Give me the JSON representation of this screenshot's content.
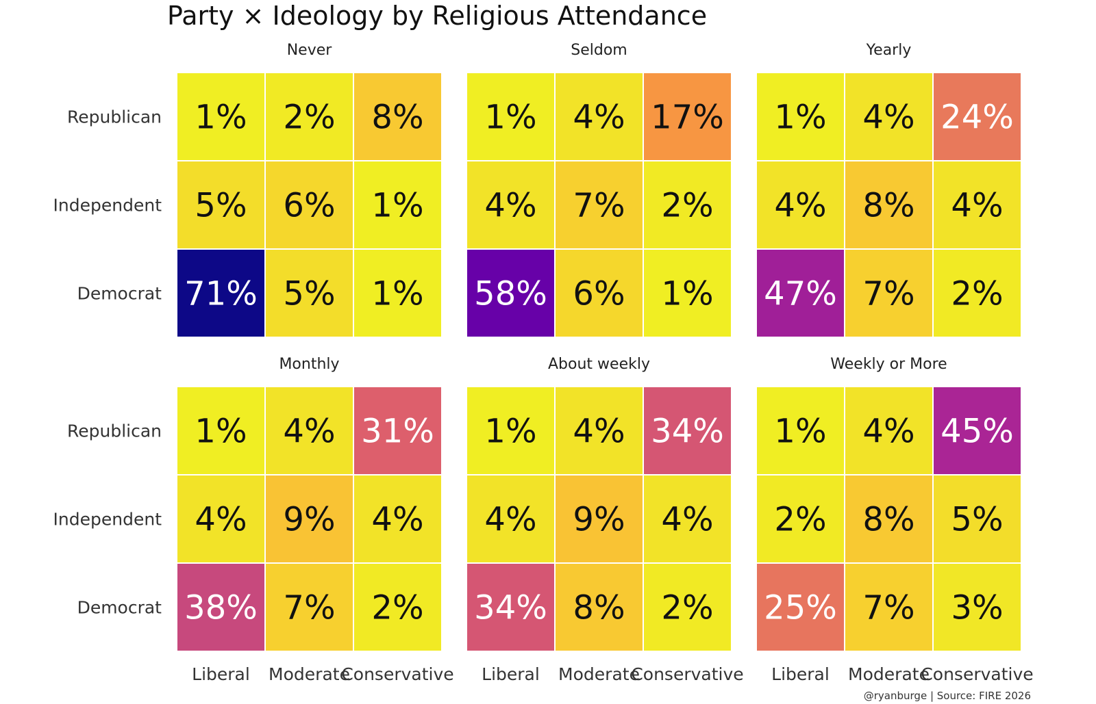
{
  "chart_data": {
    "type": "heatmap",
    "title": "Party × Ideology by Religious Attendance",
    "caption": "@ryanburge | Source: FIRE 2026",
    "rows": [
      "Republican",
      "Independent",
      "Democrat"
    ],
    "columns": [
      "Liberal",
      "Moderate",
      "Conservative"
    ],
    "value_suffix": "%",
    "color_scale": "plasma-reversed",
    "value_range": [
      0,
      71
    ],
    "panels": [
      {
        "name": "Never",
        "values": [
          [
            1,
            2,
            8
          ],
          [
            5,
            6,
            1
          ],
          [
            71,
            5,
            1
          ]
        ]
      },
      {
        "name": "Seldom",
        "values": [
          [
            1,
            4,
            17
          ],
          [
            4,
            7,
            2
          ],
          [
            58,
            6,
            1
          ]
        ]
      },
      {
        "name": "Yearly",
        "values": [
          [
            1,
            4,
            24
          ],
          [
            4,
            8,
            4
          ],
          [
            47,
            7,
            2
          ]
        ]
      },
      {
        "name": "Monthly",
        "values": [
          [
            1,
            4,
            31
          ],
          [
            4,
            9,
            4
          ],
          [
            38,
            7,
            2
          ]
        ]
      },
      {
        "name": "About weekly",
        "values": [
          [
            1,
            4,
            34
          ],
          [
            4,
            9,
            4
          ],
          [
            34,
            8,
            2
          ]
        ]
      },
      {
        "name": "Weekly or More",
        "values": [
          [
            1,
            4,
            45
          ],
          [
            2,
            8,
            5
          ],
          [
            25,
            7,
            3
          ]
        ]
      }
    ]
  }
}
